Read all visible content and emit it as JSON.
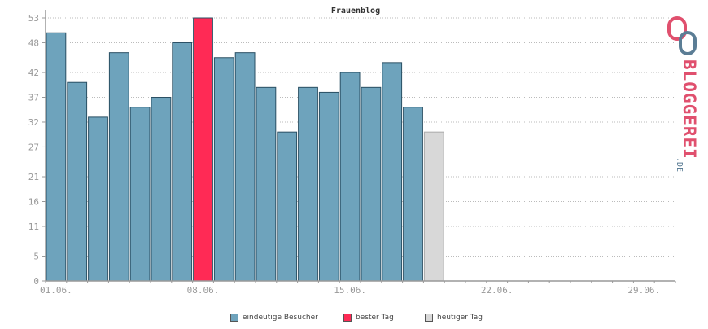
{
  "chart_data": {
    "type": "bar",
    "title": "Frauenblog",
    "xlabel": "",
    "ylabel": "",
    "ylim": [
      0,
      53
    ],
    "yticks": [
      0,
      5,
      11,
      16,
      21,
      27,
      32,
      37,
      42,
      48,
      53
    ],
    "xticks": [
      {
        "label": "01.06.",
        "day": 1
      },
      {
        "label": "08.06.",
        "day": 8
      },
      {
        "label": "15.06.",
        "day": 15
      },
      {
        "label": "22.06.",
        "day": 22
      },
      {
        "label": "29.06.",
        "day": 29
      }
    ],
    "days_in_range": 30,
    "grid": true,
    "colors": {
      "regular": "#6ea3bc",
      "best": "#ff2a55",
      "today": "#d8d8d8",
      "grid": "#bbbbbb",
      "axis": "#999999",
      "tick_text": "#999999"
    },
    "series": [
      {
        "name": "eindeutige Besucher",
        "kind": "regular",
        "values": [
          50,
          40,
          33,
          46,
          35,
          37,
          48,
          null,
          45,
          46,
          39,
          30,
          39,
          38,
          42,
          39,
          44,
          35,
          null
        ]
      },
      {
        "name": "bester Tag",
        "kind": "best",
        "values": [
          null,
          null,
          null,
          null,
          null,
          null,
          null,
          53,
          null,
          null,
          null,
          null,
          null,
          null,
          null,
          null,
          null,
          null,
          null
        ]
      },
      {
        "name": "heutiger Tag",
        "kind": "today",
        "values": [
          null,
          null,
          null,
          null,
          null,
          null,
          null,
          null,
          null,
          null,
          null,
          null,
          null,
          null,
          null,
          null,
          null,
          null,
          30
        ]
      }
    ]
  },
  "brand": {
    "name": "BLOGGEREI",
    "suffix": ".DE"
  }
}
